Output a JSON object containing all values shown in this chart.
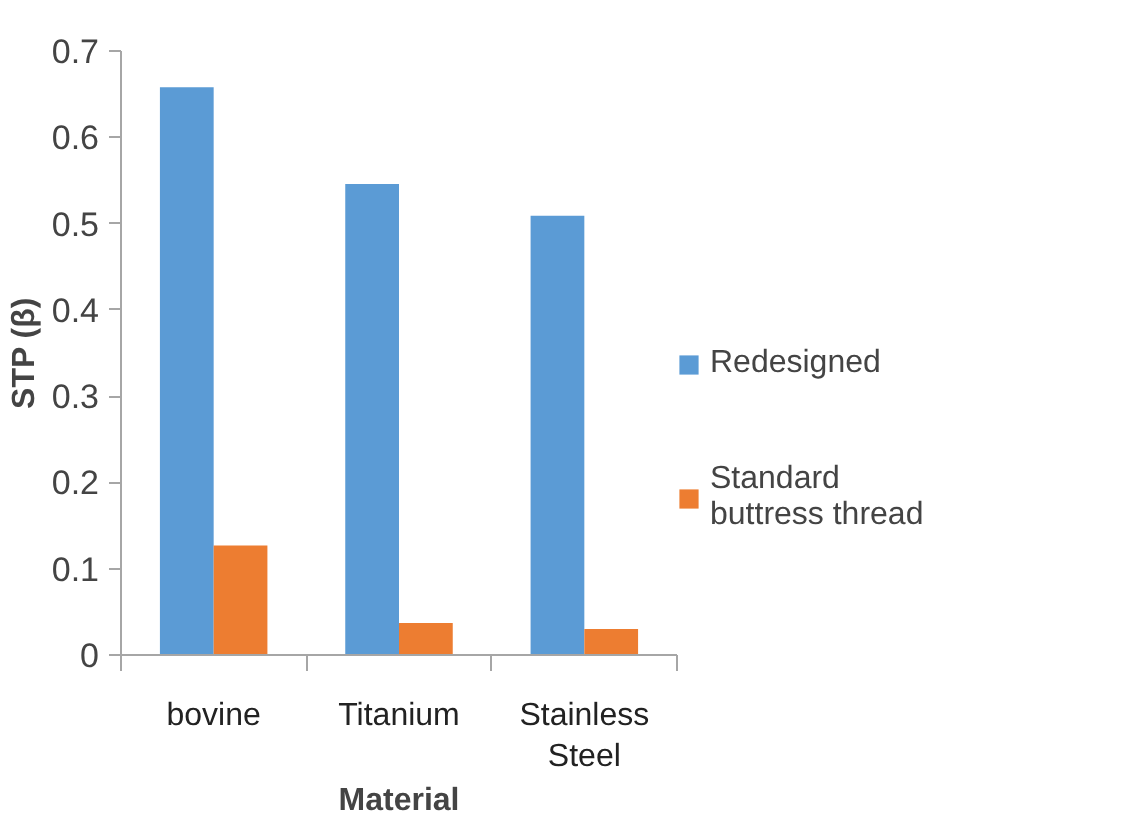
{
  "chart_data": {
    "type": "bar",
    "xlabel": "Material",
    "ylabel": "STP (β)",
    "categories": [
      "bovine",
      "Titanium",
      "Stainless Steel"
    ],
    "series": [
      {
        "name": "Redesigned",
        "color": "#5b9bd5",
        "values": [
          0.658,
          0.546,
          0.509
        ]
      },
      {
        "name": "Standard buttress thread",
        "color": "#ed7d31",
        "values": [
          0.127,
          0.037,
          0.03
        ]
      }
    ],
    "ylim": [
      0,
      0.7
    ],
    "yticks": [
      0,
      0.1,
      0.2,
      0.3,
      0.4,
      0.5,
      0.6,
      0.7
    ],
    "grid": false,
    "legend": "right"
  }
}
